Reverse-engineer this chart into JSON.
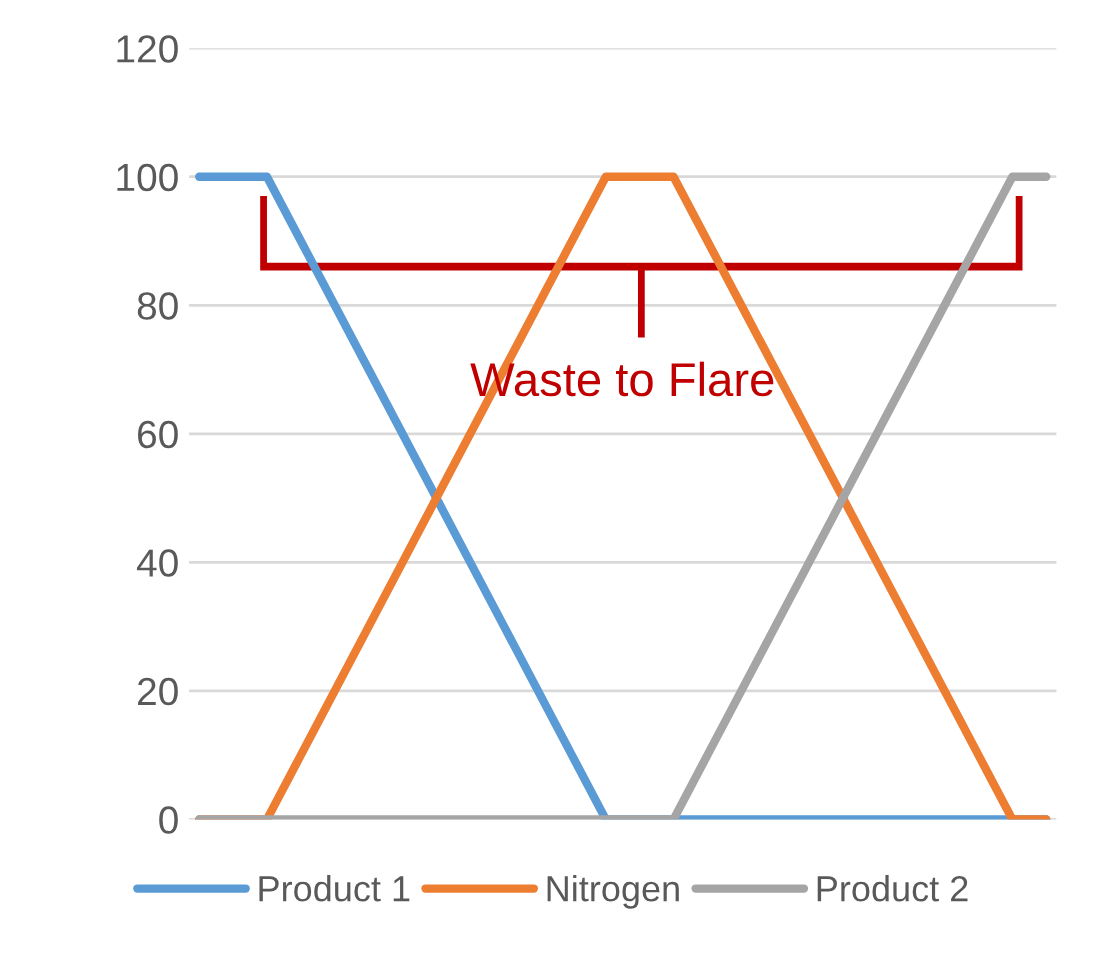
{
  "chart_data": {
    "type": "line",
    "categories": [
      null,
      null,
      null,
      null,
      null,
      null,
      null,
      null,
      null,
      null,
      null,
      null,
      null,
      null,
      null,
      null,
      null,
      null,
      null,
      null,
      null,
      null,
      null,
      null,
      null,
      null
    ],
    "series": [
      {
        "name": "Product 1",
        "color": "#5b9bd5",
        "values": [
          100,
          100,
          100,
          90,
          80,
          70,
          60,
          50,
          40,
          30,
          20,
          10,
          0,
          0,
          0,
          0,
          0,
          0,
          0,
          0,
          0,
          0,
          0,
          0,
          0,
          0
        ]
      },
      {
        "name": "Nitrogen",
        "color": "#ed7d31",
        "values": [
          0,
          0,
          0,
          10,
          20,
          30,
          40,
          50,
          60,
          70,
          80,
          90,
          100,
          100,
          100,
          90,
          80,
          70,
          60,
          50,
          40,
          30,
          20,
          10,
          0,
          0
        ]
      },
      {
        "name": "Product 2",
        "color": "#a5a5a5",
        "values": [
          0,
          0,
          0,
          0,
          0,
          0,
          0,
          0,
          0,
          0,
          0,
          0,
          0,
          0,
          0,
          10,
          20,
          30,
          40,
          50,
          60,
          70,
          80,
          90,
          100,
          100
        ]
      }
    ],
    "ylim": [
      0,
      120
    ],
    "yticks": [
      0,
      20,
      40,
      60,
      80,
      100,
      120
    ],
    "grid": "y",
    "legend": "bottom",
    "tick_labels": "y",
    "marker": "none",
    "line_style": "solid",
    "annotations": [
      "Waste to Flare"
    ]
  }
}
